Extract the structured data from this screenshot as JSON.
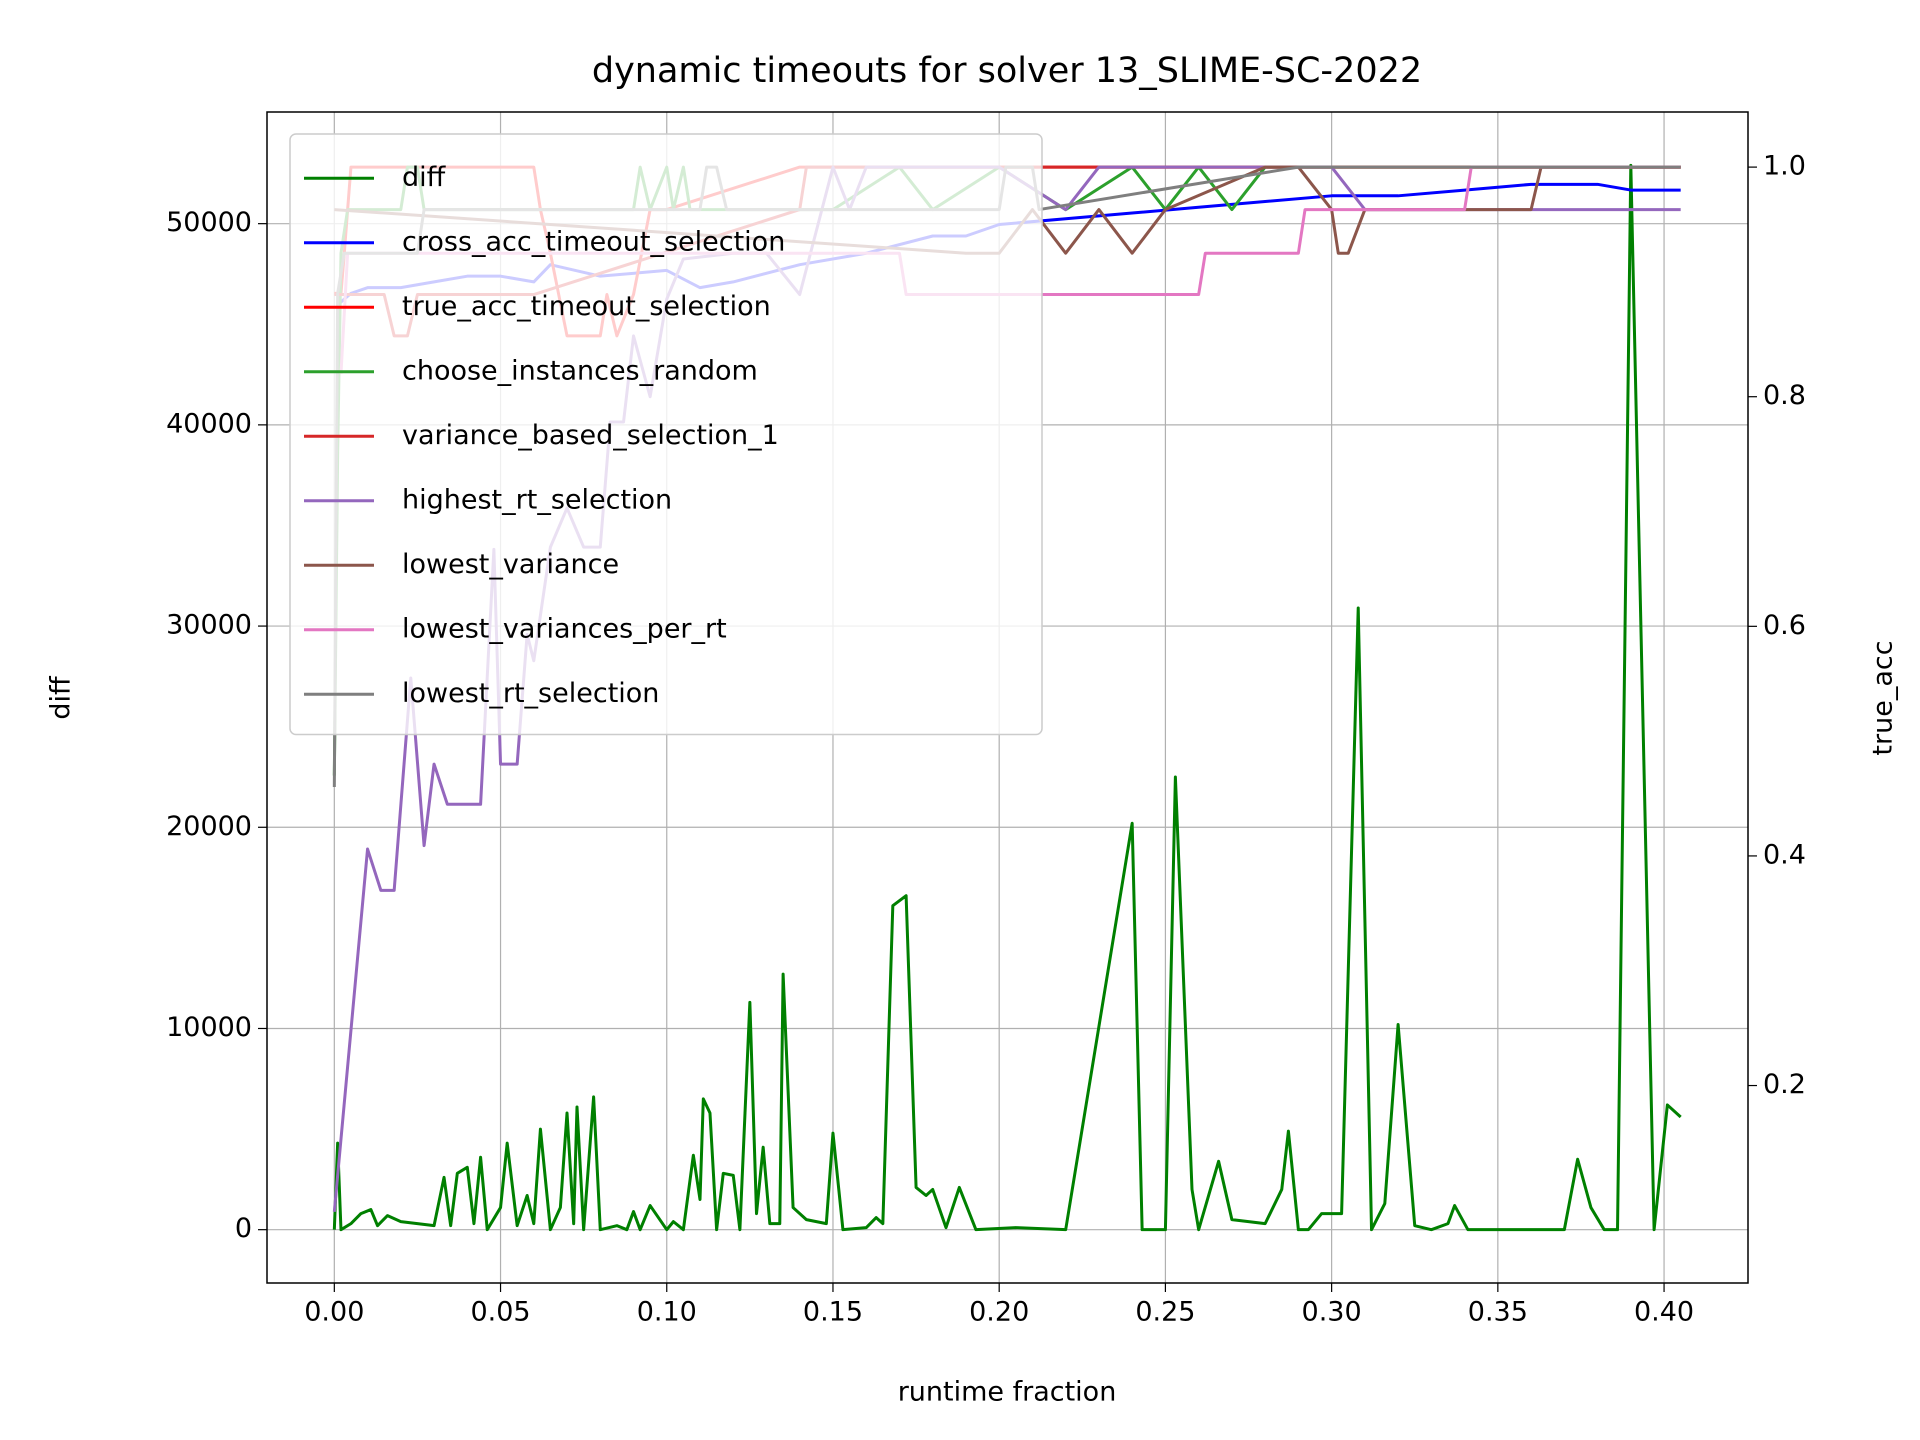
{
  "chart_data": {
    "type": "line",
    "title": "dynamic timeouts for solver 13_SLIME-SC-2022",
    "xlabel": "runtime fraction",
    "ylabel": "diff",
    "ylabel_color": "green",
    "y2label": "true_acc",
    "y2label_color": "red",
    "xlim": [
      -0.02025,
      0.42525
    ],
    "ylim": [
      -2650,
      55550
    ],
    "y2lim": [
      0.028,
      1.048
    ],
    "xticks": [
      {
        "value": 0,
        "label": "0.00"
      },
      {
        "value": 0.05,
        "label": "0.05"
      },
      {
        "value": 0.1,
        "label": "0.10"
      },
      {
        "value": 0.15,
        "label": "0.15"
      },
      {
        "value": 0.2,
        "label": "0.20"
      },
      {
        "value": 0.25,
        "label": "0.25"
      },
      {
        "value": 0.3,
        "label": "0.30"
      },
      {
        "value": 0.35,
        "label": "0.35"
      },
      {
        "value": 0.4,
        "label": "0.40"
      }
    ],
    "yticks": [
      0,
      10000,
      20000,
      30000,
      40000,
      50000
    ],
    "y2ticks": [
      0.2,
      0.4,
      0.6,
      0.8,
      {
        "value": 1,
        "label": "1.0"
      }
    ],
    "grid": true,
    "legend": "upper left",
    "series": [
      {
        "name": "diff",
        "color": "#008000",
        "axis": "y",
        "x": [
          0,
          0.001,
          0.002,
          0.005,
          0.008,
          0.011,
          0.013,
          0.016,
          0.02,
          0.025,
          0.03,
          0.033,
          0.035,
          0.037,
          0.04,
          0.042,
          0.044,
          0.046,
          0.05,
          0.052,
          0.055,
          0.058,
          0.06,
          0.062,
          0.065,
          0.068,
          0.07,
          0.072,
          0.073,
          0.075,
          0.078,
          0.08,
          0.085,
          0.088,
          0.09,
          0.092,
          0.095,
          0.1,
          0.102,
          0.105,
          0.108,
          0.11,
          0.111,
          0.113,
          0.115,
          0.117,
          0.12,
          0.122,
          0.125,
          0.127,
          0.129,
          0.131,
          0.134,
          0.135,
          0.138,
          0.142,
          0.148,
          0.15,
          0.153,
          0.16,
          0.163,
          0.165,
          0.168,
          0.172,
          0.175,
          0.178,
          0.18,
          0.184,
          0.188,
          0.193,
          0.205,
          0.22,
          0.24,
          0.243,
          0.25,
          0.253,
          0.258,
          0.26,
          0.266,
          0.27,
          0.28,
          0.285,
          0.287,
          0.29,
          0.293,
          0.297,
          0.303,
          0.308,
          0.312,
          0.316,
          0.32,
          0.325,
          0.33,
          0.335,
          0.337,
          0.341,
          0.36,
          0.37,
          0.374,
          0.378,
          0.382,
          0.386,
          0.39,
          0.397,
          0.401,
          0.405
        ],
        "values": [
          0,
          4300,
          0,
          300,
          800,
          1000,
          200,
          700,
          400,
          300,
          200,
          2600,
          200,
          2800,
          3100,
          300,
          3600,
          0,
          1100,
          4300,
          200,
          1700,
          300,
          5000,
          0,
          1100,
          5800,
          300,
          6100,
          0,
          6600,
          0,
          200,
          0,
          900,
          0,
          1200,
          0,
          400,
          0,
          3700,
          1500,
          6500,
          5800,
          0,
          2800,
          2700,
          0,
          11300,
          800,
          4100,
          300,
          300,
          12700,
          1100,
          500,
          300,
          4800,
          0,
          100,
          600,
          300,
          16100,
          16600,
          2100,
          1700,
          2000,
          100,
          2100,
          0,
          100,
          0,
          20200,
          0,
          0,
          22500,
          2000,
          0,
          3400,
          500,
          300,
          2000,
          4900,
          0,
          0,
          800,
          800,
          30900,
          0,
          1300,
          10200,
          200,
          0,
          300,
          1200,
          0,
          0,
          0,
          3500,
          1100,
          0,
          0,
          52900,
          0,
          6200,
          5600
        ]
      },
      {
        "name": "cross_acc_timeout_selection",
        "color": "#0000ff",
        "axis": "y2",
        "x": [
          0.001,
          0.005,
          0.01,
          0.02,
          0.03,
          0.04,
          0.05,
          0.06,
          0.065,
          0.08,
          0.1,
          0.11,
          0.12,
          0.14,
          0.16,
          0.18,
          0.19,
          0.2,
          0.22,
          0.24,
          0.26,
          0.28,
          0.3,
          0.32,
          0.34,
          0.36,
          0.38,
          0.39,
          0.405
        ],
        "values": [
          0.88,
          0.89,
          0.895,
          0.895,
          0.9,
          0.905,
          0.905,
          0.9,
          0.915,
          0.905,
          0.91,
          0.895,
          0.9,
          0.915,
          0.925,
          0.94,
          0.94,
          0.95,
          0.955,
          0.96,
          0.965,
          0.97,
          0.975,
          0.975,
          0.98,
          0.985,
          0.985,
          0.98,
          0.98
        ]
      },
      {
        "name": "true_acc_timeout_selection",
        "color": "#ff0000",
        "axis": "y2",
        "x": [
          0,
          0.002,
          0.003,
          0.004,
          0.005,
          0.06,
          0.062,
          0.065,
          0.07,
          0.08,
          0.082,
          0.085,
          0.09,
          0.095,
          0.1,
          0.14,
          0.405
        ],
        "values": [
          0.89,
          0.89,
          0.925,
          0.963,
          1.0,
          1.0,
          0.963,
          0.925,
          0.853,
          0.853,
          0.889,
          0.853,
          0.889,
          0.963,
          0.963,
          1.0,
          1.0
        ]
      },
      {
        "name": "choose_instances_random",
        "color": "#2ca02c",
        "axis": "y2",
        "x": [
          0,
          0.001,
          0.002,
          0.004,
          0.02,
          0.022,
          0.025,
          0.027,
          0.09,
          0.092,
          0.095,
          0.1,
          0.102,
          0.105,
          0.107,
          0.15,
          0.17,
          0.18,
          0.2,
          0.22,
          0.24,
          0.25,
          0.26,
          0.27,
          0.28,
          0.405
        ],
        "values": [
          0.47,
          0.75,
          0.925,
          0.963,
          0.963,
          1.0,
          1.0,
          0.963,
          0.963,
          1.0,
          0.963,
          1.0,
          0.963,
          1.0,
          0.963,
          0.963,
          1.0,
          0.963,
          1.0,
          0.963,
          1.0,
          0.963,
          1.0,
          0.963,
          1.0,
          1.0
        ]
      },
      {
        "name": "variance_based_selection_1",
        "color": "#d62728",
        "axis": "y2",
        "x": [
          0,
          0.005,
          0.015,
          0.018,
          0.022,
          0.025,
          0.06,
          0.14,
          0.142,
          0.405
        ],
        "values": [
          0.889,
          0.889,
          0.889,
          0.853,
          0.853,
          0.889,
          0.889,
          0.963,
          1.0,
          1.0
        ]
      },
      {
        "name": "highest_rt_selection",
        "color": "#9467bd",
        "axis": "y2",
        "x": [
          0,
          0.01,
          0.014,
          0.018,
          0.023,
          0.027,
          0.03,
          0.034,
          0.04,
          0.044,
          0.048,
          0.05,
          0.055,
          0.058,
          0.06,
          0.065,
          0.07,
          0.075,
          0.08,
          0.083,
          0.087,
          0.09,
          0.095,
          0.1,
          0.105,
          0.12,
          0.13,
          0.14,
          0.15,
          0.155,
          0.16,
          0.2,
          0.22,
          0.23,
          0.3,
          0.31,
          0.405
        ],
        "values": [
          0.09,
          0.406,
          0.37,
          0.37,
          0.555,
          0.409,
          0.48,
          0.445,
          0.445,
          0.445,
          0.667,
          0.48,
          0.48,
          0.593,
          0.57,
          0.669,
          0.703,
          0.669,
          0.669,
          0.778,
          0.778,
          0.853,
          0.8,
          0.885,
          0.92,
          0.925,
          0.925,
          0.889,
          1.0,
          0.963,
          1.0,
          1.0,
          0.963,
          1.0,
          1.0,
          0.963,
          0.963
        ]
      },
      {
        "name": "lowest_variance",
        "color": "#8c564b",
        "axis": "y2",
        "x": [
          0,
          0.19,
          0.2,
          0.21,
          0.22,
          0.23,
          0.24,
          0.25,
          0.28,
          0.29,
          0.3,
          0.302,
          0.305,
          0.31,
          0.36,
          0.363,
          0.405
        ],
        "values": [
          0.963,
          0.925,
          0.925,
          0.963,
          0.925,
          0.963,
          0.925,
          0.963,
          1.0,
          1.0,
          0.963,
          0.925,
          0.925,
          0.963,
          0.963,
          1.0,
          1.0
        ]
      },
      {
        "name": "lowest_variances_per_rt",
        "color": "#e377c2",
        "axis": "y2",
        "x": [
          0.002,
          0.004,
          0.17,
          0.172,
          0.26,
          0.262,
          0.29,
          0.292,
          0.34,
          0.342,
          0.405
        ],
        "values": [
          0.82,
          0.925,
          0.925,
          0.889,
          0.889,
          0.925,
          0.925,
          0.963,
          0.963,
          1.0,
          1.0
        ]
      },
      {
        "name": "lowest_rt_selection",
        "color": "#7f7f7f",
        "axis": "y2",
        "x": [
          0,
          0.001,
          0.003,
          0.025,
          0.027,
          0.11,
          0.112,
          0.115,
          0.118,
          0.2,
          0.202,
          0.21,
          0.212,
          0.29,
          0.405
        ],
        "values": [
          0.46,
          0.89,
          0.925,
          0.925,
          0.963,
          0.963,
          1.0,
          1.0,
          0.963,
          0.963,
          1.0,
          1.0,
          0.963,
          1.0,
          1.0
        ]
      }
    ]
  }
}
